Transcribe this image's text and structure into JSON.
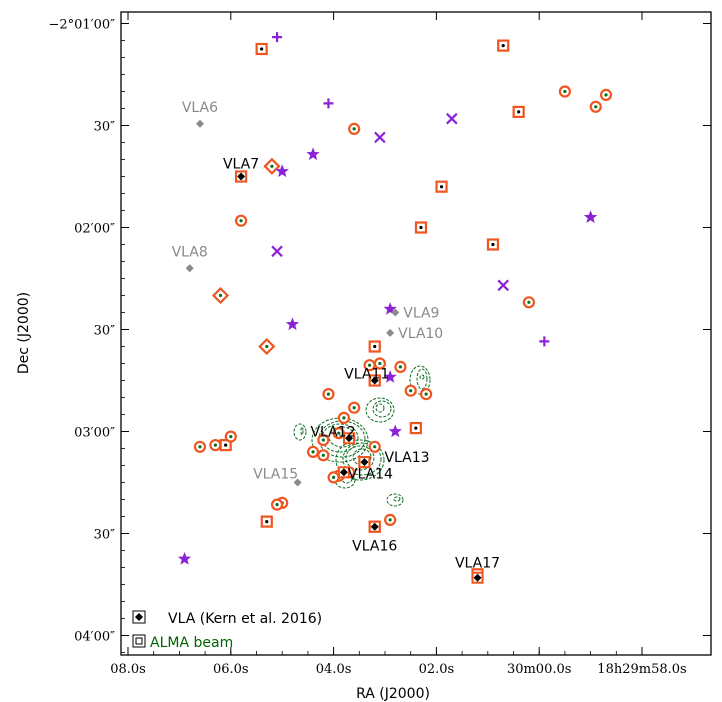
{
  "chart_data": {
    "type": "scatter",
    "xlabel": "RA (J2000)",
    "ylabel": "Dec (J2000)",
    "xlim_sec": [
      8.2,
      58.0
    ],
    "ylim_arcsec": [
      -62.8,
      60.6
    ],
    "x_ticks": [
      {
        "value": 8.0,
        "label": "08.0s"
      },
      {
        "value": 6.0,
        "label": "06.0s"
      },
      {
        "value": 4.0,
        "label": "04.0s"
      },
      {
        "value": 2.0,
        "label": "02.0s"
      },
      {
        "value": 0.0,
        "label": "30m00.0s"
      },
      {
        "value": -2.0,
        "label": "18h29m58.0s"
      }
    ],
    "y_ticks": [
      {
        "value": 0,
        "label": "−2°01′00″"
      },
      {
        "value": 30,
        "label": "30″"
      },
      {
        "value": 60,
        "label": "02′00″"
      },
      {
        "value": 90,
        "label": "30″"
      },
      {
        "value": 120,
        "label": "03′00″"
      },
      {
        "value": 150,
        "label": "30″"
      },
      {
        "value": 180,
        "label": "04′00″"
      }
    ],
    "vla_sources": [
      {
        "name": "VLA6",
        "ra": 6.6,
        "dec": 29.5,
        "detected": false
      },
      {
        "name": "VLA7",
        "ra": 5.8,
        "dec": 45.0,
        "detected": true
      },
      {
        "name": "VLA8",
        "ra": 6.8,
        "dec": 72.0,
        "detected": false
      },
      {
        "name": "VLA9",
        "ra": 2.8,
        "dec": 85.0,
        "detected": false
      },
      {
        "name": "VLA10",
        "ra": 2.9,
        "dec": 91.0,
        "detected": false
      },
      {
        "name": "VLA11",
        "ra": 3.2,
        "dec": 105.0,
        "detected": true
      },
      {
        "name": "VLA12",
        "ra": 3.7,
        "dec": 122.0,
        "detected": true
      },
      {
        "name": "VLA13",
        "ra": 3.4,
        "dec": 129.0,
        "detected": true
      },
      {
        "name": "VLA14",
        "ra": 3.8,
        "dec": 132.0,
        "detected": true
      },
      {
        "name": "VLA15",
        "ra": 4.7,
        "dec": 135.0,
        "detected": false
      },
      {
        "name": "VLA16",
        "ra": 3.2,
        "dec": 148.0,
        "detected": true
      },
      {
        "name": "VLA17",
        "ra": 1.2,
        "dec": 163.0,
        "detected": true
      }
    ],
    "alma_squares": [
      {
        "ra": 5.4,
        "dec": 7.5
      },
      {
        "ra": 0.7,
        "dec": 6.5
      },
      {
        "ra": 0.4,
        "dec": 26.0
      },
      {
        "ra": 5.8,
        "dec": 45.0
      },
      {
        "ra": 1.9,
        "dec": 48.0
      },
      {
        "ra": 2.3,
        "dec": 60.0
      },
      {
        "ra": 0.9,
        "dec": 65.0
      },
      {
        "ra": 3.2,
        "dec": 95.0
      },
      {
        "ra": 3.2,
        "dec": 105.0
      },
      {
        "ra": 2.4,
        "dec": 119.0
      },
      {
        "ra": 6.1,
        "dec": 124.0
      },
      {
        "ra": 3.4,
        "dec": 129.0
      },
      {
        "ra": 5.3,
        "dec": 146.5
      },
      {
        "ra": 3.2,
        "dec": 148.0
      },
      {
        "ra": 1.2,
        "dec": 162.0
      }
    ],
    "alma_circles": [
      {
        "ra": 3.6,
        "dec": 31.0
      },
      {
        "ra": 5.8,
        "dec": 58.0
      },
      {
        "ra": -0.5,
        "dec": 20.0
      },
      {
        "ra": -1.1,
        "dec": 24.5
      },
      {
        "ra": -1.3,
        "dec": 21.0
      },
      {
        "ra": 0.2,
        "dec": 82.0
      },
      {
        "ra": 4.1,
        "dec": 109.0
      },
      {
        "ra": 3.6,
        "dec": 113.0
      },
      {
        "ra": 3.8,
        "dec": 116.0
      },
      {
        "ra": 2.7,
        "dec": 101.0
      },
      {
        "ra": 3.1,
        "dec": 100.0
      },
      {
        "ra": 3.3,
        "dec": 100.5
      },
      {
        "ra": 2.5,
        "dec": 108.0
      },
      {
        "ra": 2.2,
        "dec": 109.0
      },
      {
        "ra": 6.0,
        "dec": 121.5
      },
      {
        "ra": 6.6,
        "dec": 124.5
      },
      {
        "ra": 6.3,
        "dec": 124.0
      },
      {
        "ra": 3.9,
        "dec": 120.5
      },
      {
        "ra": 4.2,
        "dec": 122.5
      },
      {
        "ra": 4.4,
        "dec": 126.0
      },
      {
        "ra": 4.2,
        "dec": 127.0
      },
      {
        "ra": 3.7,
        "dec": 132.0
      },
      {
        "ra": 3.9,
        "dec": 133.0
      },
      {
        "ra": 4.0,
        "dec": 133.5
      },
      {
        "ra": 5.0,
        "dec": 141.0
      },
      {
        "ra": 5.1,
        "dec": 141.5
      },
      {
        "ra": 2.9,
        "dec": 146.0
      },
      {
        "ra": 3.2,
        "dec": 124.5
      }
    ],
    "alma_diamonds": [
      {
        "ra": 5.2,
        "dec": 42.0
      },
      {
        "ra": 6.2,
        "dec": 80.0
      },
      {
        "ra": 5.3,
        "dec": 95.0
      }
    ],
    "pluses": [
      {
        "ra": 5.1,
        "dec": 4.0
      },
      {
        "ra": 4.1,
        "dec": 23.5
      },
      {
        "ra": -0.1,
        "dec": 93.5
      }
    ],
    "crosses": [
      {
        "ra": 3.1,
        "dec": 33.5
      },
      {
        "ra": 1.7,
        "dec": 28.0
      },
      {
        "ra": 5.1,
        "dec": 67.0
      },
      {
        "ra": 0.7,
        "dec": 77.0
      }
    ],
    "stars": [
      {
        "ra": 4.4,
        "dec": 38.5
      },
      {
        "ra": 5.0,
        "dec": 43.5
      },
      {
        "ra": -1.0,
        "dec": 57.0
      },
      {
        "ra": 2.9,
        "dec": 84.0
      },
      {
        "ra": 4.8,
        "dec": 88.5
      },
      {
        "ra": 2.9,
        "dec": 104.0
      },
      {
        "ra": 2.8,
        "dec": 120.0
      },
      {
        "ra": 6.9,
        "dec": 157.5
      }
    ],
    "legend": [
      {
        "label": "VLA (Kern et al. 2016)",
        "color": "#000000"
      },
      {
        "label": "ALMA beam",
        "color": "#006400"
      }
    ],
    "legend_placement": "bottom-left",
    "colors": {
      "alma": "#f0541f",
      "purple": "#8b22d6",
      "contour": "#0a6e1e",
      "undetected": "#8a8a8a",
      "detected": "#000000"
    }
  }
}
